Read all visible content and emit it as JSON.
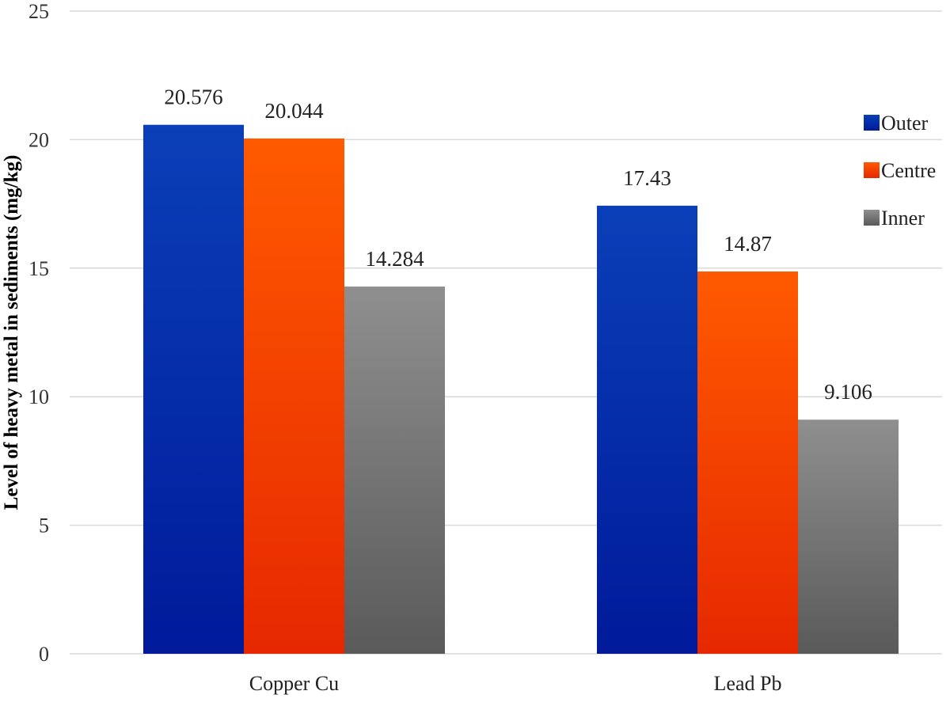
{
  "chart_data": {
    "type": "bar",
    "title": "",
    "xlabel": "",
    "ylabel": "Level of heavy metal in sediments (mg/kg)",
    "ylim": [
      0,
      25
    ],
    "yticks": [
      0,
      5,
      10,
      15,
      20,
      25
    ],
    "grid": true,
    "legend_position": "right",
    "categories": [
      "Copper Cu",
      "Lead Pb"
    ],
    "series": [
      {
        "name": "Outer",
        "values": [
          20.576,
          17.43
        ],
        "labels": [
          "20.576",
          "17.43"
        ],
        "color_top": "#0a3fb8",
        "color_bottom": "#001a9a"
      },
      {
        "name": "Centre",
        "values": [
          20.044,
          14.87
        ],
        "labels": [
          "20.044",
          "14.87"
        ],
        "color_top": "#ff5a00",
        "color_bottom": "#e62800"
      },
      {
        "name": "Inner",
        "values": [
          14.284,
          9.106
        ],
        "labels": [
          "14.284",
          "9.106"
        ],
        "color_top": "#8f8f8f",
        "color_bottom": "#5a5a5a"
      }
    ]
  }
}
